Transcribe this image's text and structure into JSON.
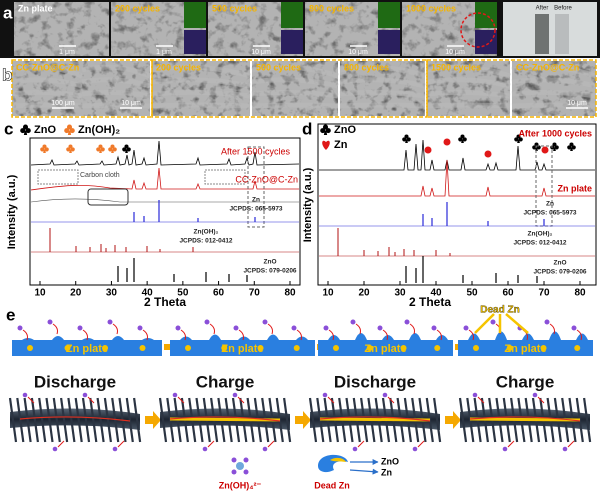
{
  "panel_a": {
    "label": "a",
    "images": [
      {
        "caption": "Zn plate",
        "scale": "1 μm"
      },
      {
        "caption": "200 cycles",
        "scale": "1 μm"
      },
      {
        "caption": "500 cycles",
        "scale": "10 μm"
      },
      {
        "caption": "800 cycles",
        "scale": "10 μm"
      },
      {
        "caption": "1000 cycles",
        "scale": "10 μm"
      }
    ],
    "photo": {
      "after": "After",
      "before": "Before"
    }
  },
  "panel_b": {
    "label": "b",
    "images": [
      {
        "caption": "CC-ZnO@C-Zn",
        "scale": "100 μm"
      },
      {
        "scale": "10 μm"
      },
      {
        "caption": "200 cycles"
      },
      {
        "caption": "500 cycles"
      },
      {
        "caption": "800 cycles"
      },
      {
        "caption": "1500 cycles"
      },
      {
        "caption": "CC-ZnO@C-Zn",
        "scale": "10 μm"
      }
    ]
  },
  "panel_c": {
    "label": "c",
    "legend": [
      "ZnO",
      "Zn(OH)₂"
    ],
    "xlabel": "2 Theta",
    "ylabel": "Intensity (a.u.)",
    "xticks": [
      10,
      20,
      30,
      40,
      50,
      60,
      70,
      80
    ],
    "traces": [
      "After 1500 cycles",
      "CC-ZnO@C-Zn",
      "Carbon cloth"
    ],
    "refs": [
      [
        "Zn",
        "JCPDS: 065-5973"
      ],
      [
        "Zn(OH)₂",
        "JCPDS: 012-0412"
      ],
      [
        "ZnO",
        "JCPDS: 079-0206"
      ]
    ]
  },
  "panel_d": {
    "label": "d",
    "legend": [
      "ZnO",
      "Zn"
    ],
    "xlabel": "2 Theta",
    "ylabel": "Intensity (a.u.)",
    "xticks": [
      10,
      20,
      30,
      40,
      50,
      60,
      70,
      80
    ],
    "traces": [
      "After 1000 cycles",
      "Zn plate"
    ],
    "refs": [
      [
        "Zn",
        "JCPDS: 065-5973"
      ],
      [
        "Zn(OH)₂",
        "JCPDS: 012-0412"
      ],
      [
        "ZnO",
        "JCPDS: 079-0206"
      ]
    ]
  },
  "panel_e": {
    "label": "e",
    "plate": "Zn plate",
    "dead": "Dead Zn",
    "steps": [
      "Discharge",
      "Charge",
      "Discharge",
      "Charge"
    ],
    "legend": {
      "ion": "Zn(OH)₄²⁻",
      "dead": "Dead Zn",
      "zno": "ZnO",
      "zn": "Zn"
    }
  }
}
